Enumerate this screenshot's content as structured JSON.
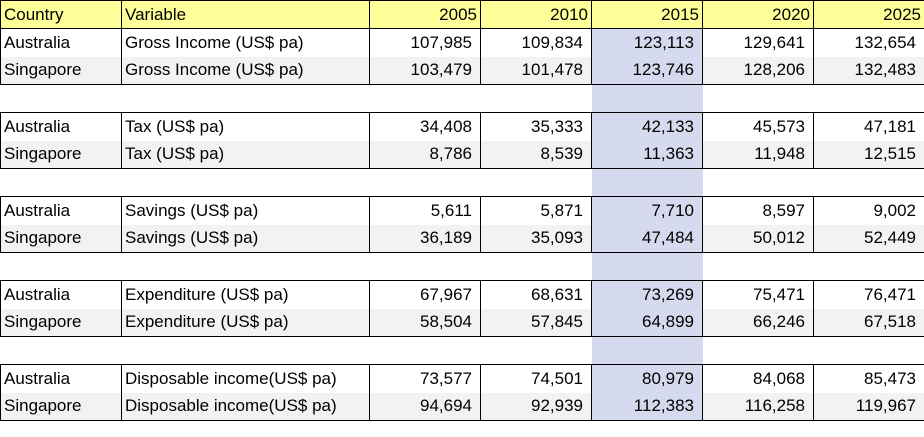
{
  "header": {
    "country": "Country",
    "variable": "Variable",
    "years": [
      "2005",
      "2010",
      "2015",
      "2020",
      "2025"
    ]
  },
  "groups": [
    {
      "rows": [
        {
          "country": "Australia",
          "variable": "Gross Income (US$ pa)",
          "values": [
            "107,985",
            "109,834",
            "123,113",
            "129,641",
            "132,654"
          ]
        },
        {
          "country": "Singapore",
          "variable": "Gross Income (US$ pa)",
          "values": [
            "103,479",
            "101,478",
            "123,746",
            "128,206",
            "132,483"
          ]
        }
      ]
    },
    {
      "rows": [
        {
          "country": "Australia",
          "variable": "Tax (US$ pa)",
          "values": [
            "34,408",
            "35,333",
            "42,133",
            "45,573",
            "47,181"
          ]
        },
        {
          "country": "Singapore",
          "variable": "Tax (US$ pa)",
          "values": [
            "8,786",
            "8,539",
            "11,363",
            "11,948",
            "12,515"
          ]
        }
      ]
    },
    {
      "rows": [
        {
          "country": "Australia",
          "variable": "Savings (US$ pa)",
          "values": [
            "5,611",
            "5,871",
            "7,710",
            "8,597",
            "9,002"
          ]
        },
        {
          "country": "Singapore",
          "variable": "Savings (US$ pa)",
          "values": [
            "36,189",
            "35,093",
            "47,484",
            "50,012",
            "52,449"
          ]
        }
      ]
    },
    {
      "rows": [
        {
          "country": "Australia",
          "variable": "Expenditure (US$ pa)",
          "values": [
            "67,967",
            "68,631",
            "73,269",
            "75,471",
            "76,471"
          ]
        },
        {
          "country": "Singapore",
          "variable": "Expenditure (US$ pa)",
          "values": [
            "58,504",
            "57,845",
            "64,899",
            "66,246",
            "67,518"
          ]
        }
      ]
    },
    {
      "rows": [
        {
          "country": "Australia",
          "variable": "Disposable income(US$ pa)",
          "values": [
            "73,577",
            "74,501",
            "80,979",
            "84,068",
            "85,473"
          ]
        },
        {
          "country": "Singapore",
          "variable": "Disposable income(US$ pa)",
          "values": [
            "94,694",
            "92,939",
            "112,383",
            "116,258",
            "119,967"
          ]
        }
      ]
    }
  ],
  "highlight_color": "#d5daee",
  "header_color": "#ffff99"
}
